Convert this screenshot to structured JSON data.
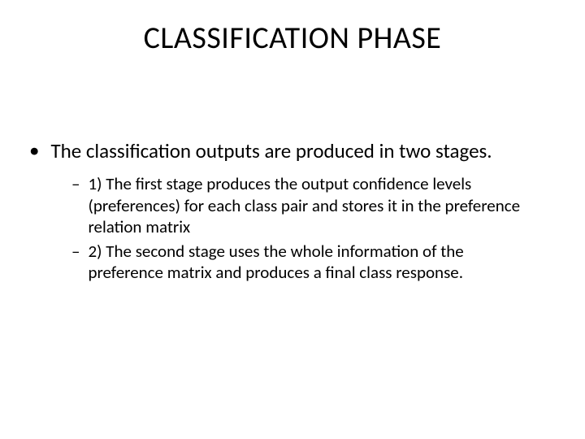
{
  "slide": {
    "title": "CLASSIFICATION PHASE",
    "title_fontsize": 38,
    "title_color": "#000000",
    "body_color": "#000000",
    "background_color": "#ffffff",
    "bullet_l1_fontsize": 25,
    "bullet_l2_fontsize": 21,
    "bullets": [
      {
        "marker": "•",
        "text": "The classification outputs are produced in two stages.",
        "children": [
          {
            "marker": "–",
            "text": "1) The first stage produces the output confidence levels (preferences) for each class pair and stores it in the preference relation matrix"
          },
          {
            "marker": "–",
            "text": "2) The second stage uses the whole information of the preference matrix and produces a final class response."
          }
        ]
      }
    ]
  }
}
